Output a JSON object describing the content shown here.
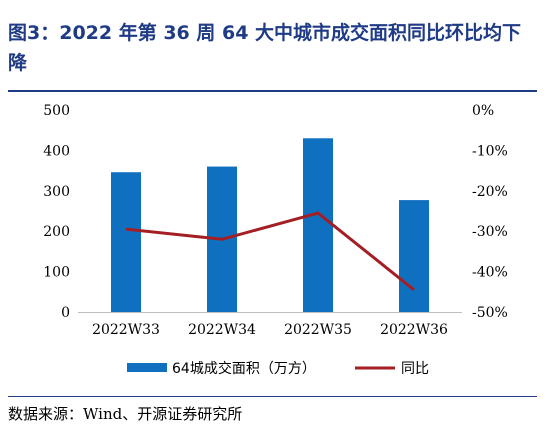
{
  "header": {
    "title": "图3：2022 年第 36 周 64 大中城市成交面积同比环比均下降"
  },
  "footer": {
    "source": "数据来源：Wind、开源证券研究所"
  },
  "chart_data": {
    "type": "bar",
    "title": "",
    "categories": [
      "2022W33",
      "2022W34",
      "2022W35",
      "2022W36"
    ],
    "series": [
      {
        "name": "64城成交面积（万方）",
        "type": "bar",
        "axis": "left",
        "values": [
          346,
          360,
          430,
          277
        ],
        "color": "#1070c0"
      },
      {
        "name": "同比",
        "type": "line",
        "axis": "right",
        "values": [
          -29.5,
          -32,
          -25.5,
          -44.5
        ],
        "color": "#a31f24"
      }
    ],
    "y_left": {
      "min": 0,
      "max": 500,
      "ticks": [
        "0",
        "100",
        "200",
        "300",
        "400",
        "500"
      ]
    },
    "y_right": {
      "min": -50,
      "max": 0,
      "ticks": [
        "-50%",
        "-40%",
        "-30%",
        "-20%",
        "-10%",
        "0%"
      ]
    },
    "grid": false,
    "legend": "bottom"
  }
}
